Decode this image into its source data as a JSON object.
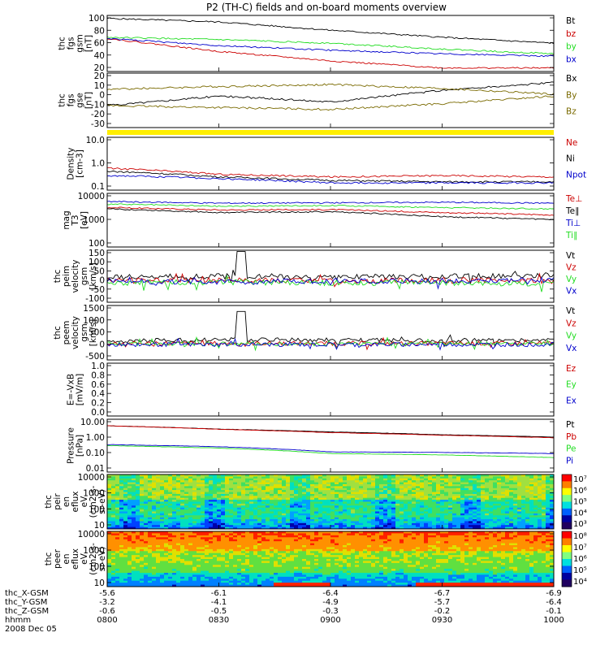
{
  "title": "P2 (TH-C) fields and on-board moments overview",
  "colors": {
    "black": "#000000",
    "red": "#cc0000",
    "green": "#22dd22",
    "blue": "#0000cc",
    "olive": "#7a6a00",
    "yellow": "#ffee00"
  },
  "panels": [
    {
      "id": "fgs-gsm",
      "ylabel": [
        "thc",
        "fgs",
        "gsm",
        "[nT]"
      ],
      "ticks": [
        "100",
        "80",
        "60",
        "40",
        "20"
      ],
      "legend": [
        "Bt",
        "bz",
        "by",
        "bx"
      ],
      "legend_colors": [
        "black",
        "red",
        "green",
        "blue"
      ]
    },
    {
      "id": "fgs-gse",
      "ylabel": [
        "thc",
        "fgs",
        "gse",
        "[nT]"
      ],
      "ticks": [
        "20",
        "10",
        "0",
        "-10",
        "-20",
        "-30"
      ],
      "legend": [
        "Bx",
        "By",
        "Bz"
      ],
      "legend_colors": [
        "black",
        "olive",
        "olive"
      ]
    },
    {
      "id": "density",
      "ylabel": [
        "Density",
        "[cm-3]"
      ],
      "ticks": [
        "10.0",
        "1.0",
        "0.1"
      ],
      "legend": [
        "Ne",
        "Ni",
        "Npot"
      ],
      "legend_colors": [
        "red",
        "black",
        "blue"
      ]
    },
    {
      "id": "temperature",
      "ylabel": [
        "mag",
        "T3",
        "[eV]"
      ],
      "ticks": [
        "10000",
        "1000",
        "100"
      ],
      "legend": [
        "Te⊥",
        "Te∥",
        "Ti⊥",
        "Ti∥"
      ],
      "legend_colors": [
        "red",
        "black",
        "blue",
        "green"
      ]
    },
    {
      "id": "peim-velocity",
      "ylabel": [
        "thc",
        "peim",
        "velocity",
        "gsm",
        "[km/s]"
      ],
      "ticks": [
        "150",
        "100",
        "50",
        "0",
        "-50",
        "-100"
      ],
      "legend": [
        "Vt",
        "Vz",
        "Vy",
        "Vx"
      ],
      "legend_colors": [
        "black",
        "red",
        "green",
        "blue"
      ]
    },
    {
      "id": "peem-velocity",
      "ylabel": [
        "thc",
        "peem",
        "velocity",
        "gsm",
        "[km/s]"
      ],
      "ticks": [
        "1500",
        "1000",
        "500",
        "0",
        "-500"
      ],
      "legend": [
        "Vt",
        "Vz",
        "Vy",
        "Vx"
      ],
      "legend_colors": [
        "black",
        "red",
        "green",
        "blue"
      ]
    },
    {
      "id": "efield",
      "ylabel": [
        "E=-VxB",
        "[mV/m]"
      ],
      "ticks": [
        "1.0",
        "0.8",
        "0.6",
        "0.4",
        "0.2",
        "0.0"
      ],
      "legend": [
        "Ez",
        "Ey",
        "Ex"
      ],
      "legend_colors": [
        "red",
        "green",
        "blue"
      ]
    },
    {
      "id": "pressure",
      "ylabel": [
        "Pressure",
        "[nPa]"
      ],
      "ticks": [
        "10.00",
        "1.00",
        "0.10",
        "0.01"
      ],
      "legend": [
        "Pt",
        "Pb",
        "Pe",
        "Pi"
      ],
      "legend_colors": [
        "black",
        "red",
        "green",
        "blue"
      ]
    },
    {
      "id": "peir-eflux",
      "ylabel": [
        "thc",
        "peir",
        "en",
        "eflux",
        "eV",
        "(cm2-s-",
        "sr-eV)"
      ],
      "ticks": [
        "10000",
        "1000",
        "100",
        "10"
      ],
      "colorbar": [
        "10⁷",
        "10⁶",
        "10⁵",
        "10⁴",
        "10³"
      ]
    },
    {
      "id": "peer-eflux",
      "ylabel": [
        "thc",
        "peer",
        "en",
        "eflux",
        "eV",
        "(cm2-s-",
        "sr-eV)"
      ],
      "ticks": [
        "10000",
        "1000",
        "100",
        "10"
      ],
      "colorbar": [
        "10⁸",
        "10⁷",
        "10⁶",
        "10⁵",
        "10⁴"
      ]
    }
  ],
  "xaxis": {
    "rows": [
      {
        "label": "thc_X-GSM",
        "values": [
          "-5.6",
          "-6.1",
          "-6.4",
          "-6.7",
          "-6.9"
        ]
      },
      {
        "label": "thc_Y-GSM",
        "values": [
          "-3.2",
          "-4.1",
          "-4.9",
          "-5.7",
          "-6.4"
        ]
      },
      {
        "label": "thc_Z-GSM",
        "values": [
          "-0.6",
          "-0.5",
          "-0.3",
          "-0.2",
          "-0.1"
        ]
      },
      {
        "label": "hhmm",
        "values": [
          "0800",
          "0830",
          "0900",
          "0930",
          "1000"
        ]
      }
    ],
    "date": "2008 Dec 05"
  },
  "chart_data": {
    "type": "line",
    "title": "P2 (TH-C) fields and on-board moments overview",
    "x": [
      "0800",
      "0830",
      "0900",
      "0930",
      "1000"
    ],
    "xlabel": "hhmm",
    "date": "2008 Dec 05",
    "panels": [
      {
        "ylabel": "thc fgs gsm [nT]",
        "ylim": [
          10,
          105
        ],
        "series": [
          {
            "name": "Bt",
            "values": [
              100,
              94,
              80,
              68,
              58
            ]
          },
          {
            "name": "bz",
            "values": [
              66,
              44,
              28,
              16,
              16
            ]
          },
          {
            "name": "by",
            "values": [
              68,
              64,
              58,
              48,
              40
            ]
          },
          {
            "name": "bx",
            "values": [
              66,
              54,
              46,
              40,
              36
            ]
          }
        ]
      },
      {
        "ylabel": "thc fgs gse [nT]",
        "ylim": [
          -35,
          22
        ],
        "series": [
          {
            "name": "Bx",
            "values": [
              -12,
              -2,
              -8,
              4,
              12
            ]
          },
          {
            "name": "By",
            "values": [
              5,
              8,
              10,
              6,
              0
            ]
          },
          {
            "name": "Bz",
            "values": [
              -12,
              -14,
              -16,
              -10,
              -2
            ]
          }
        ]
      },
      {
        "ylabel": "Density [cm-3]",
        "scale": "log",
        "ylim": [
          0.1,
          15
        ],
        "series": [
          {
            "name": "Ne",
            "values": [
              0.8,
              0.45,
              0.35,
              0.4,
              0.35
            ]
          },
          {
            "name": "Ni",
            "values": [
              0.6,
              0.35,
              0.25,
              0.22,
              0.22
            ]
          },
          {
            "name": "Npot",
            "values": [
              0.4,
              0.3,
              0.2,
              0.2,
              0.2
            ]
          }
        ]
      },
      {
        "ylabel": "mag T3 [eV]",
        "scale": "log",
        "ylim": [
          100,
          15000
        ],
        "series": [
          {
            "name": "Te⊥",
            "values": [
              4000,
              3200,
              3300,
              2500,
              2000
            ]
          },
          {
            "name": "Te∥",
            "values": [
              3500,
              2500,
              2700,
              1700,
              1300
            ]
          },
          {
            "name": "Ti⊥",
            "values": [
              7000,
              6000,
              6200,
              6500,
              6000
            ]
          },
          {
            "name": "Ti∥",
            "values": [
              5500,
              4500,
              4800,
              4000,
              3500
            ]
          }
        ]
      },
      {
        "ylabel": "thc peim velocity gsm [km/s]",
        "ylim": [
          -110,
          160
        ],
        "series": [
          {
            "name": "Vt",
            "values": [
              20,
              25,
              20,
              25,
              30
            ]
          },
          {
            "name": "Vz",
            "values": [
              0,
              5,
              0,
              5,
              0
            ]
          },
          {
            "name": "Vy",
            "values": [
              -10,
              -5,
              -10,
              -10,
              -15
            ]
          },
          {
            "name": "Vx",
            "values": [
              0,
              -5,
              0,
              0,
              5
            ]
          }
        ]
      },
      {
        "ylabel": "thc peem velocity gsm [km/s]",
        "ylim": [
          -700,
          1600
        ],
        "series": [
          {
            "name": "Vt",
            "values": [
              100,
              150,
              150,
              120,
              150
            ]
          },
          {
            "name": "Vz",
            "values": [
              0,
              0,
              0,
              0,
              0
            ]
          },
          {
            "name": "Vy",
            "values": [
              -20,
              -20,
              -20,
              -20,
              -20
            ]
          },
          {
            "name": "Vx",
            "values": [
              -50,
              -50,
              -50,
              -50,
              -50
            ]
          }
        ]
      },
      {
        "ylabel": "E=-VxB [mV/m]",
        "ylim": [
          0,
          1
        ],
        "series": []
      },
      {
        "ylabel": "Pressure [nPa]",
        "scale": "log",
        "ylim": [
          0.01,
          12
        ],
        "series": [
          {
            "name": "Pt",
            "values": [
              5,
              3.2,
              2.2,
              1.5,
              1.1
            ]
          },
          {
            "name": "Pb",
            "values": [
              5,
              3.1,
              2.0,
              1.4,
              1.0
            ]
          },
          {
            "name": "Pe",
            "values": [
              0.35,
              0.25,
              0.12,
              0.1,
              0.07
            ]
          },
          {
            "name": "Pi",
            "values": [
              0.4,
              0.3,
              0.15,
              0.14,
              0.12
            ]
          }
        ]
      }
    ]
  }
}
